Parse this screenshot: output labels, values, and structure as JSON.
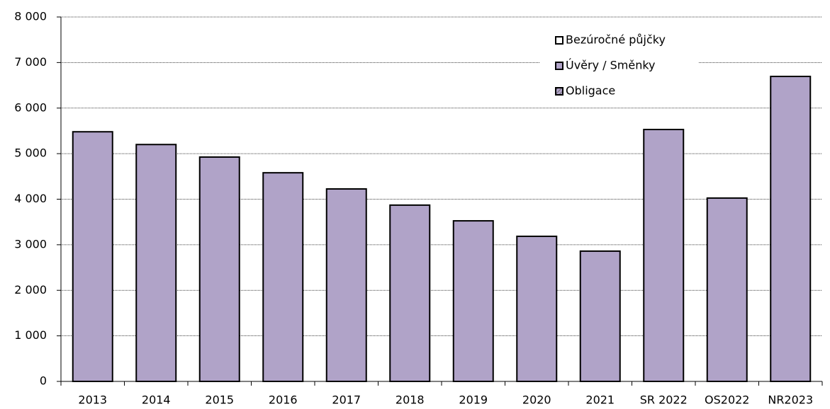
{
  "chart_data": {
    "type": "stacked_bar",
    "categories": [
      "2013",
      "2014",
      "2015",
      "2016",
      "2017",
      "2018",
      "2019",
      "2020",
      "2021",
      "SR 2022",
      "OS2022",
      "NR2023"
    ],
    "series": [
      {
        "name": "Bezúročné půjčky",
        "color": "#ffffff",
        "values": [
          0,
          0,
          0,
          0,
          0,
          0,
          0,
          0,
          0,
          0,
          0,
          0
        ]
      },
      {
        "name": "Úvěry / Směnky",
        "color": "#b0a3c8",
        "values": [
          5480,
          5200,
          4925,
          4580,
          4225,
          3870,
          3525,
          3185,
          2860,
          5530,
          4025,
          6695
        ]
      },
      {
        "name": "Obligace",
        "color": "#b0a3c8",
        "pattern": "hatch",
        "values": [
          0,
          0,
          0,
          0,
          0,
          0,
          0,
          0,
          0,
          0,
          0,
          0
        ]
      }
    ],
    "ylim": [
      0,
      8000
    ],
    "yticks": [
      0,
      {
        "value": 1000,
        "label": "1 000"
      },
      {
        "value": 2000,
        "label": "2 000"
      },
      {
        "value": 3000,
        "label": "3 000"
      },
      {
        "value": 4000,
        "label": "4 000"
      },
      {
        "value": 5000,
        "label": "5 000"
      },
      {
        "value": 6000,
        "label": "6 000"
      },
      {
        "value": 7000,
        "label": "7 000"
      },
      {
        "value": 8000,
        "label": "8 000"
      }
    ],
    "grid": true,
    "legend": "top-right"
  }
}
